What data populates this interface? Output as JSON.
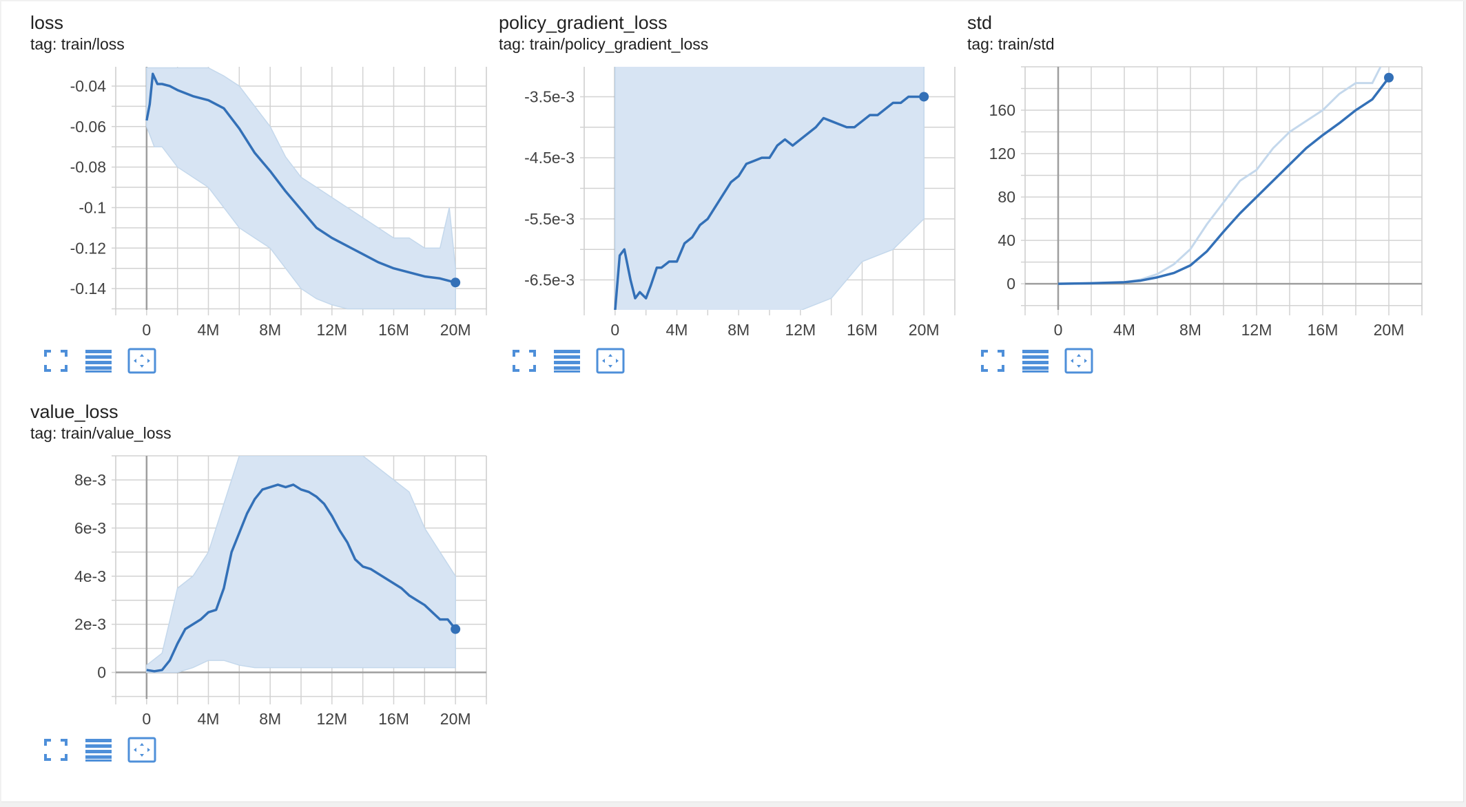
{
  "colors": {
    "line": "#3370b7",
    "raw": "#c4d8ec",
    "band": "#d7e4f3",
    "grid": "#d2d2d2",
    "zero_axis": "#9e9e9e",
    "tool": "#4e8fd9"
  },
  "cards": [
    {
      "title": "loss",
      "tag": "tag: train/loss"
    },
    {
      "title": "policy_gradient_loss",
      "tag": "tag: train/policy_gradient_loss"
    },
    {
      "title": "std",
      "tag": "tag: train/std"
    },
    {
      "title": "value_loss",
      "tag": "tag: train/value_loss"
    }
  ],
  "toolbar_icons": [
    "fit-screen-icon",
    "data-table-icon",
    "fit-domain-icon"
  ],
  "chart_data": [
    {
      "type": "line",
      "title": "loss",
      "x_ticks": [
        "0",
        "4M",
        "8M",
        "12M",
        "16M",
        "20M"
      ],
      "xlim": [
        -2000000,
        22000000
      ],
      "y_ticks": [
        {
          "value": -0.04,
          "label": "-0.04"
        },
        {
          "value": -0.06,
          "label": "-0.06"
        },
        {
          "value": -0.08,
          "label": "-0.08"
        },
        {
          "value": -0.1,
          "label": "-0.1"
        },
        {
          "value": -0.12,
          "label": "-0.12"
        },
        {
          "value": -0.14,
          "label": "-0.14"
        }
      ],
      "ylim": [
        -0.1505,
        -0.0305
      ],
      "grid": true,
      "series": [
        {
          "role": "smoothed",
          "x": [
            0,
            200000,
            400000,
            700000,
            1000000,
            1500000,
            2000000,
            3000000,
            4000000,
            5000000,
            6000000,
            7000000,
            8000000,
            9000000,
            10000000,
            11000000,
            12000000,
            13000000,
            14000000,
            15000000,
            16000000,
            17000000,
            18000000,
            19000000,
            20000000
          ],
          "y": [
            -0.057,
            -0.049,
            -0.034,
            -0.039,
            -0.039,
            -0.04,
            -0.042,
            -0.045,
            -0.047,
            -0.051,
            -0.061,
            -0.073,
            -0.082,
            -0.092,
            -0.101,
            -0.11,
            -0.115,
            -0.119,
            -0.123,
            -0.127,
            -0.13,
            -0.132,
            -0.134,
            -0.135,
            -0.137
          ]
        },
        {
          "role": "raw",
          "x": [
            0,
            500000,
            1000000,
            2000000,
            3000000,
            4000000,
            5000000,
            6000000,
            7000000,
            8000000,
            9000000,
            10000000,
            11000000,
            12000000,
            13000000,
            14000000,
            15000000,
            16000000,
            17000000,
            18000000,
            19000000,
            19600000,
            20000000
          ],
          "y_low": [
            -0.06,
            -0.07,
            -0.07,
            -0.08,
            -0.085,
            -0.09,
            -0.1,
            -0.11,
            -0.115,
            -0.12,
            -0.13,
            -0.14,
            -0.145,
            -0.148,
            -0.15,
            -0.15,
            -0.15,
            -0.15,
            -0.15,
            -0.15,
            -0.15,
            -0.15,
            -0.15
          ],
          "y_high": [
            -0.031,
            -0.031,
            -0.031,
            -0.031,
            -0.031,
            -0.031,
            -0.035,
            -0.04,
            -0.05,
            -0.06,
            -0.075,
            -0.085,
            -0.09,
            -0.095,
            -0.1,
            -0.105,
            -0.11,
            -0.115,
            -0.115,
            -0.12,
            -0.12,
            -0.1,
            -0.13
          ]
        }
      ],
      "last_point": {
        "x": 20000000,
        "y": -0.137
      }
    },
    {
      "type": "line",
      "title": "policy_gradient_loss",
      "x_ticks": [
        "0",
        "2M",
        "4M",
        "6M",
        "8M",
        "10M",
        "12M",
        "14M",
        "16M",
        "18M",
        "20M"
      ],
      "x_tick_labels_shown": [
        "0",
        "4M",
        "8M",
        "12M",
        "16M",
        "20M"
      ],
      "xlim": [
        -2000000,
        22000000
      ],
      "y_ticks": [
        {
          "value": -0.0035,
          "label": "-3.5e-3"
        },
        {
          "value": -0.0045,
          "label": "-4.5e-3"
        },
        {
          "value": -0.0055,
          "label": "-5.5e-3"
        },
        {
          "value": -0.0065,
          "label": "-6.5e-3"
        }
      ],
      "ylim": [
        -0.00699,
        -0.00301
      ],
      "grid": true,
      "series": [
        {
          "role": "smoothed",
          "x": [
            0,
            300000,
            600000,
            1000000,
            1300000,
            1600000,
            2000000,
            2300000,
            2700000,
            3000000,
            3500000,
            4000000,
            4500000,
            5000000,
            5500000,
            6000000,
            6500000,
            7000000,
            7500000,
            8000000,
            8500000,
            9000000,
            9500000,
            10000000,
            10500000,
            11000000,
            11500000,
            12000000,
            12500000,
            13000000,
            13500000,
            14000000,
            14500000,
            15000000,
            15500000,
            16000000,
            16500000,
            17000000,
            17500000,
            18000000,
            18500000,
            19000000,
            19500000,
            20000000
          ],
          "y": [
            -0.007,
            -0.0061,
            -0.006,
            -0.0065,
            -0.0068,
            -0.0067,
            -0.0068,
            -0.0066,
            -0.0063,
            -0.0063,
            -0.0062,
            -0.0062,
            -0.0059,
            -0.0058,
            -0.0056,
            -0.0055,
            -0.0053,
            -0.0051,
            -0.0049,
            -0.0048,
            -0.0046,
            -0.00455,
            -0.0045,
            -0.0045,
            -0.0043,
            -0.0042,
            -0.0043,
            -0.0042,
            -0.0041,
            -0.004,
            -0.00385,
            -0.0039,
            -0.00395,
            -0.004,
            -0.004,
            -0.0039,
            -0.0038,
            -0.0038,
            -0.0037,
            -0.0036,
            -0.0036,
            -0.0035,
            -0.0035,
            -0.0035
          ]
        },
        {
          "role": "raw",
          "x": [
            0,
            2000000,
            4000000,
            6000000,
            8000000,
            10000000,
            12000000,
            14000000,
            16000000,
            18000000,
            20000000
          ],
          "y_low": [
            -0.007,
            -0.007,
            -0.007,
            -0.007,
            -0.007,
            -0.007,
            -0.007,
            -0.0068,
            -0.0062,
            -0.006,
            -0.0055
          ],
          "y_high": [
            -0.003,
            -0.003,
            -0.003,
            -0.003,
            -0.003,
            -0.003,
            -0.003,
            -0.003,
            -0.003,
            -0.003,
            -0.003
          ]
        }
      ],
      "last_point": {
        "x": 20000000,
        "y": -0.0035
      }
    },
    {
      "type": "line",
      "title": "std",
      "x_ticks": [
        "0",
        "2M",
        "4M",
        "6M",
        "8M",
        "10M",
        "12M",
        "14M",
        "16M",
        "18M",
        "20M"
      ],
      "x_tick_labels_shown": [
        "0",
        "4M",
        "8M",
        "12M",
        "16M",
        "20M"
      ],
      "xlim": [
        -2000000,
        22000000
      ],
      "y_ticks": [
        {
          "value": 0,
          "label": "0"
        },
        {
          "value": 40,
          "label": "40"
        },
        {
          "value": 80,
          "label": "80"
        },
        {
          "value": 120,
          "label": "120"
        },
        {
          "value": 160,
          "label": "160"
        }
      ],
      "ylim": [
        -24,
        200
      ],
      "grid": true,
      "series": [
        {
          "role": "smoothed",
          "x": [
            0,
            2000000,
            4000000,
            5000000,
            6000000,
            7000000,
            8000000,
            9000000,
            10000000,
            11000000,
            12000000,
            13000000,
            14000000,
            15000000,
            16000000,
            17000000,
            18000000,
            19000000,
            20000000
          ],
          "y": [
            0,
            0.5,
            1.5,
            3,
            6,
            10,
            17,
            30,
            48,
            65,
            80,
            95,
            110,
            125,
            137,
            148,
            160,
            170,
            190
          ]
        },
        {
          "role": "raw",
          "x": [
            0,
            2000000,
            4000000,
            5000000,
            6000000,
            7000000,
            8000000,
            9000000,
            10000000,
            11000000,
            12000000,
            13000000,
            14000000,
            15000000,
            16000000,
            17000000,
            18000000,
            19000000,
            19500000
          ],
          "y": [
            0,
            0.5,
            1.5,
            4,
            9,
            18,
            32,
            55,
            75,
            95,
            105,
            125,
            140,
            150,
            160,
            175,
            185,
            185,
            200
          ]
        }
      ],
      "last_point": {
        "x": 20000000,
        "y": 190
      }
    },
    {
      "type": "line",
      "title": "value_loss",
      "x_ticks": [
        "0",
        "2M",
        "4M",
        "6M",
        "8M",
        "10M",
        "12M",
        "14M",
        "16M",
        "18M",
        "20M"
      ],
      "x_tick_labels_shown": [
        "0",
        "4M",
        "8M",
        "12M",
        "16M",
        "20M"
      ],
      "xlim": [
        -2000000,
        22000000
      ],
      "y_ticks": [
        {
          "value": 0,
          "label": "0"
        },
        {
          "value": 0.002,
          "label": "2e-3"
        },
        {
          "value": 0.004,
          "label": "4e-3"
        },
        {
          "value": 0.006,
          "label": "6e-3"
        },
        {
          "value": 0.008,
          "label": "8e-3"
        }
      ],
      "ylim": [
        -0.0011,
        0.009
      ],
      "grid": true,
      "series": [
        {
          "role": "smoothed",
          "x": [
            0,
            500000,
            1000000,
            1500000,
            2000000,
            2500000,
            3000000,
            3500000,
            4000000,
            4500000,
            5000000,
            5500000,
            6000000,
            6500000,
            7000000,
            7500000,
            8000000,
            8500000,
            9000000,
            9500000,
            10000000,
            10500000,
            11000000,
            11500000,
            12000000,
            12500000,
            13000000,
            13500000,
            14000000,
            14500000,
            15000000,
            15500000,
            16000000,
            16500000,
            17000000,
            17500000,
            18000000,
            18500000,
            19000000,
            19500000,
            20000000
          ],
          "y": [
            0.0001,
            5e-05,
            0.0001,
            0.0005,
            0.0012,
            0.0018,
            0.002,
            0.0022,
            0.0025,
            0.0026,
            0.0035,
            0.005,
            0.0058,
            0.0066,
            0.0072,
            0.0076,
            0.0077,
            0.0078,
            0.0077,
            0.0078,
            0.0076,
            0.0075,
            0.0073,
            0.007,
            0.0065,
            0.0059,
            0.0054,
            0.0047,
            0.0044,
            0.0043,
            0.0041,
            0.0039,
            0.0037,
            0.0035,
            0.0032,
            0.003,
            0.0028,
            0.0025,
            0.0022,
            0.0022,
            0.0018
          ]
        },
        {
          "role": "raw",
          "x": [
            0,
            1000000,
            2000000,
            3000000,
            4000000,
            5000000,
            6000000,
            7000000,
            8000000,
            9000000,
            10000000,
            11000000,
            12000000,
            13000000,
            14000000,
            15000000,
            16000000,
            17000000,
            18000000,
            19000000,
            20000000
          ],
          "y_low": [
            0,
            0,
            0,
            0.0002,
            0.0005,
            0.0005,
            0.0003,
            0.0002,
            0.0002,
            0.0002,
            0.0002,
            0.0002,
            0.0002,
            0.0002,
            0.0002,
            0.0002,
            0.0002,
            0.0002,
            0.0002,
            0.0002,
            0.0002
          ],
          "y_high": [
            0.0003,
            0.0008,
            0.0035,
            0.004,
            0.005,
            0.007,
            0.009,
            0.009,
            0.009,
            0.009,
            0.009,
            0.009,
            0.009,
            0.009,
            0.009,
            0.0085,
            0.008,
            0.0075,
            0.006,
            0.005,
            0.004
          ]
        }
      ],
      "last_point": {
        "x": 20000000,
        "y": 0.0018
      }
    }
  ]
}
